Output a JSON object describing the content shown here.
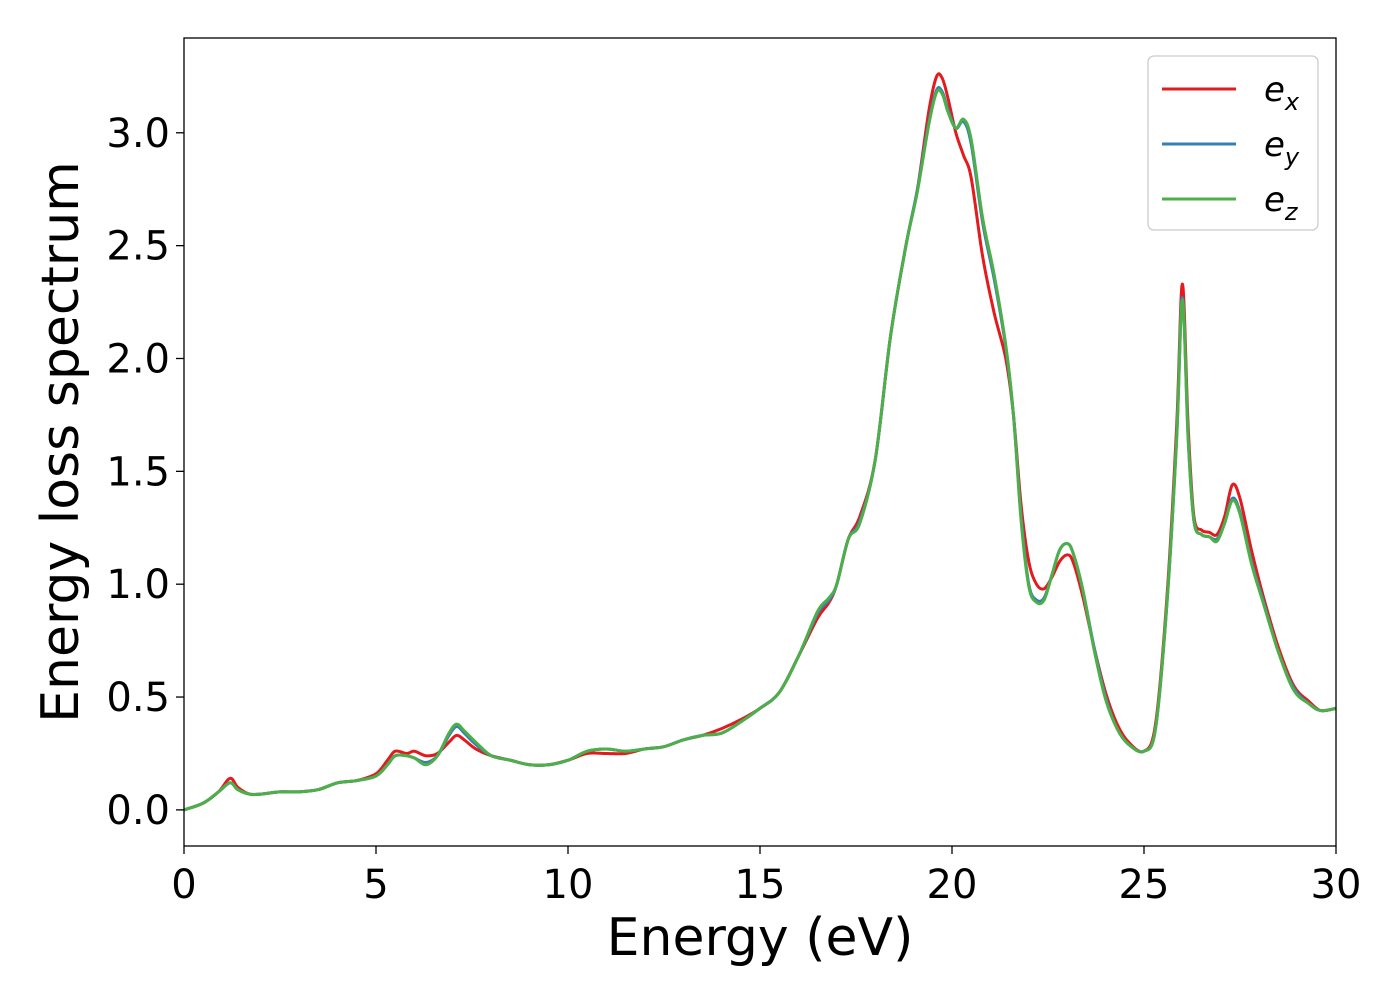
{
  "chart_data": {
    "type": "line",
    "xlabel": "Energy (eV)",
    "ylabel": "Energy loss spectrum",
    "xlim": [
      0,
      30
    ],
    "ylim": [
      -0.16,
      3.42
    ],
    "xticks": [
      0,
      5,
      10,
      15,
      20,
      25,
      30
    ],
    "xtick_labels": [
      "0",
      "5",
      "10",
      "15",
      "20",
      "25",
      "30"
    ],
    "yticks": [
      0.0,
      0.5,
      1.0,
      1.5,
      2.0,
      2.5,
      3.0
    ],
    "ytick_labels": [
      "0.0",
      "0.5",
      "1.0",
      "1.5",
      "2.0",
      "2.5",
      "3.0"
    ],
    "grid": false,
    "legend_position": "top-right",
    "series": [
      {
        "name": "e",
        "subscript": "x",
        "color": "#e41a1c",
        "x": [
          0,
          0.5,
          0.9,
          1.2,
          1.4,
          1.7,
          2.0,
          2.5,
          3.0,
          3.5,
          4.0,
          4.5,
          5.0,
          5.3,
          5.5,
          5.8,
          6.0,
          6.3,
          6.6,
          6.9,
          7.1,
          7.3,
          7.6,
          8.0,
          8.5,
          9.0,
          9.5,
          10.0,
          10.5,
          11.0,
          11.5,
          12.0,
          12.5,
          13.0,
          13.5,
          14.0,
          14.5,
          15.0,
          15.5,
          16.0,
          16.5,
          16.8,
          17.0,
          17.3,
          17.6,
          18.0,
          18.4,
          18.8,
          19.1,
          19.4,
          19.6,
          19.75,
          19.9,
          20.1,
          20.3,
          20.5,
          20.8,
          21.1,
          21.4,
          21.6,
          21.8,
          22.0,
          22.2,
          22.4,
          22.6,
          22.8,
          23.0,
          23.15,
          23.4,
          23.7,
          24.0,
          24.3,
          24.6,
          25.0,
          25.3,
          25.6,
          25.85,
          26.0,
          26.15,
          26.3,
          26.5,
          26.7,
          26.9,
          27.1,
          27.3,
          27.5,
          27.8,
          28.1,
          28.5,
          28.9,
          29.3,
          29.6,
          30.0
        ],
        "values": [
          0.0,
          0.03,
          0.08,
          0.14,
          0.1,
          0.07,
          0.07,
          0.08,
          0.08,
          0.09,
          0.12,
          0.13,
          0.16,
          0.22,
          0.26,
          0.25,
          0.26,
          0.24,
          0.25,
          0.3,
          0.33,
          0.31,
          0.27,
          0.24,
          0.22,
          0.2,
          0.2,
          0.22,
          0.25,
          0.25,
          0.25,
          0.27,
          0.28,
          0.31,
          0.33,
          0.36,
          0.4,
          0.45,
          0.52,
          0.68,
          0.85,
          0.92,
          1.0,
          1.2,
          1.3,
          1.55,
          2.1,
          2.5,
          2.75,
          3.1,
          3.25,
          3.24,
          3.15,
          3.0,
          2.9,
          2.8,
          2.45,
          2.2,
          2.0,
          1.75,
          1.35,
          1.1,
          1.0,
          0.98,
          1.03,
          1.1,
          1.13,
          1.1,
          0.95,
          0.72,
          0.52,
          0.38,
          0.3,
          0.26,
          0.38,
          0.95,
          1.7,
          2.33,
          1.7,
          1.3,
          1.24,
          1.23,
          1.22,
          1.3,
          1.44,
          1.38,
          1.15,
          0.95,
          0.72,
          0.55,
          0.48,
          0.44,
          0.45
        ]
      },
      {
        "name": "e",
        "subscript": "y",
        "color": "#377eb8",
        "x": [
          0,
          0.5,
          0.9,
          1.2,
          1.4,
          1.7,
          2.0,
          2.5,
          3.0,
          3.5,
          4.0,
          4.5,
          5.0,
          5.3,
          5.5,
          5.8,
          6.0,
          6.3,
          6.6,
          6.9,
          7.1,
          7.3,
          7.6,
          8.0,
          8.5,
          9.0,
          9.5,
          10.0,
          10.5,
          11.0,
          11.5,
          12.0,
          12.5,
          13.0,
          13.5,
          14.0,
          14.5,
          15.0,
          15.5,
          16.0,
          16.5,
          16.8,
          17.0,
          17.3,
          17.6,
          18.0,
          18.4,
          18.8,
          19.1,
          19.4,
          19.6,
          19.75,
          19.9,
          20.1,
          20.3,
          20.5,
          20.8,
          21.1,
          21.4,
          21.6,
          21.8,
          22.0,
          22.2,
          22.4,
          22.6,
          22.8,
          23.0,
          23.15,
          23.4,
          23.7,
          24.0,
          24.3,
          24.6,
          25.0,
          25.3,
          25.6,
          25.85,
          26.0,
          26.15,
          26.3,
          26.5,
          26.7,
          26.9,
          27.1,
          27.3,
          27.5,
          27.8,
          28.1,
          28.5,
          28.9,
          29.3,
          29.6,
          30.0
        ],
        "values": [
          0.0,
          0.03,
          0.08,
          0.12,
          0.09,
          0.07,
          0.07,
          0.08,
          0.08,
          0.09,
          0.12,
          0.13,
          0.15,
          0.2,
          0.24,
          0.24,
          0.23,
          0.21,
          0.24,
          0.33,
          0.37,
          0.34,
          0.29,
          0.24,
          0.22,
          0.2,
          0.2,
          0.22,
          0.26,
          0.27,
          0.26,
          0.27,
          0.28,
          0.31,
          0.33,
          0.34,
          0.39,
          0.45,
          0.52,
          0.68,
          0.87,
          0.93,
          1.0,
          1.2,
          1.28,
          1.55,
          2.1,
          2.5,
          2.75,
          3.05,
          3.19,
          3.18,
          3.1,
          3.02,
          3.05,
          2.95,
          2.6,
          2.35,
          2.05,
          1.75,
          1.3,
          1.0,
          0.93,
          0.94,
          1.04,
          1.15,
          1.18,
          1.14,
          0.98,
          0.72,
          0.5,
          0.36,
          0.29,
          0.26,
          0.36,
          0.92,
          1.65,
          2.27,
          1.65,
          1.28,
          1.22,
          1.21,
          1.2,
          1.27,
          1.38,
          1.32,
          1.1,
          0.93,
          0.7,
          0.54,
          0.47,
          0.44,
          0.45
        ]
      },
      {
        "name": "e",
        "subscript": "z",
        "color": "#4daf4a",
        "x": [
          0,
          0.5,
          0.9,
          1.2,
          1.4,
          1.7,
          2.0,
          2.5,
          3.0,
          3.5,
          4.0,
          4.5,
          5.0,
          5.3,
          5.5,
          5.8,
          6.0,
          6.3,
          6.6,
          6.9,
          7.1,
          7.3,
          7.6,
          8.0,
          8.5,
          9.0,
          9.5,
          10.0,
          10.5,
          11.0,
          11.5,
          12.0,
          12.5,
          13.0,
          13.5,
          14.0,
          14.5,
          15.0,
          15.5,
          16.0,
          16.5,
          16.8,
          17.0,
          17.3,
          17.6,
          18.0,
          18.4,
          18.8,
          19.1,
          19.4,
          19.6,
          19.75,
          19.9,
          20.1,
          20.3,
          20.5,
          20.8,
          21.1,
          21.4,
          21.6,
          21.8,
          22.0,
          22.2,
          22.4,
          22.6,
          22.8,
          23.0,
          23.15,
          23.4,
          23.7,
          24.0,
          24.3,
          24.6,
          25.0,
          25.3,
          25.6,
          25.85,
          26.0,
          26.15,
          26.3,
          26.5,
          26.7,
          26.9,
          27.1,
          27.3,
          27.5,
          27.8,
          28.1,
          28.5,
          28.9,
          29.3,
          29.6,
          30.0
        ],
        "values": [
          0.0,
          0.03,
          0.08,
          0.12,
          0.09,
          0.07,
          0.07,
          0.08,
          0.08,
          0.09,
          0.12,
          0.13,
          0.15,
          0.2,
          0.24,
          0.24,
          0.23,
          0.2,
          0.24,
          0.34,
          0.38,
          0.35,
          0.3,
          0.24,
          0.22,
          0.2,
          0.2,
          0.22,
          0.26,
          0.27,
          0.26,
          0.27,
          0.28,
          0.31,
          0.33,
          0.34,
          0.39,
          0.45,
          0.52,
          0.68,
          0.88,
          0.94,
          1.0,
          1.2,
          1.27,
          1.55,
          2.1,
          2.5,
          2.74,
          3.04,
          3.18,
          3.17,
          3.09,
          3.02,
          3.06,
          2.97,
          2.62,
          2.37,
          2.06,
          1.75,
          1.28,
          0.99,
          0.92,
          0.93,
          1.04,
          1.15,
          1.18,
          1.14,
          0.98,
          0.71,
          0.49,
          0.36,
          0.29,
          0.26,
          0.36,
          0.92,
          1.64,
          2.26,
          1.64,
          1.28,
          1.22,
          1.21,
          1.19,
          1.27,
          1.37,
          1.31,
          1.09,
          0.92,
          0.7,
          0.53,
          0.47,
          0.44,
          0.45
        ]
      }
    ]
  }
}
